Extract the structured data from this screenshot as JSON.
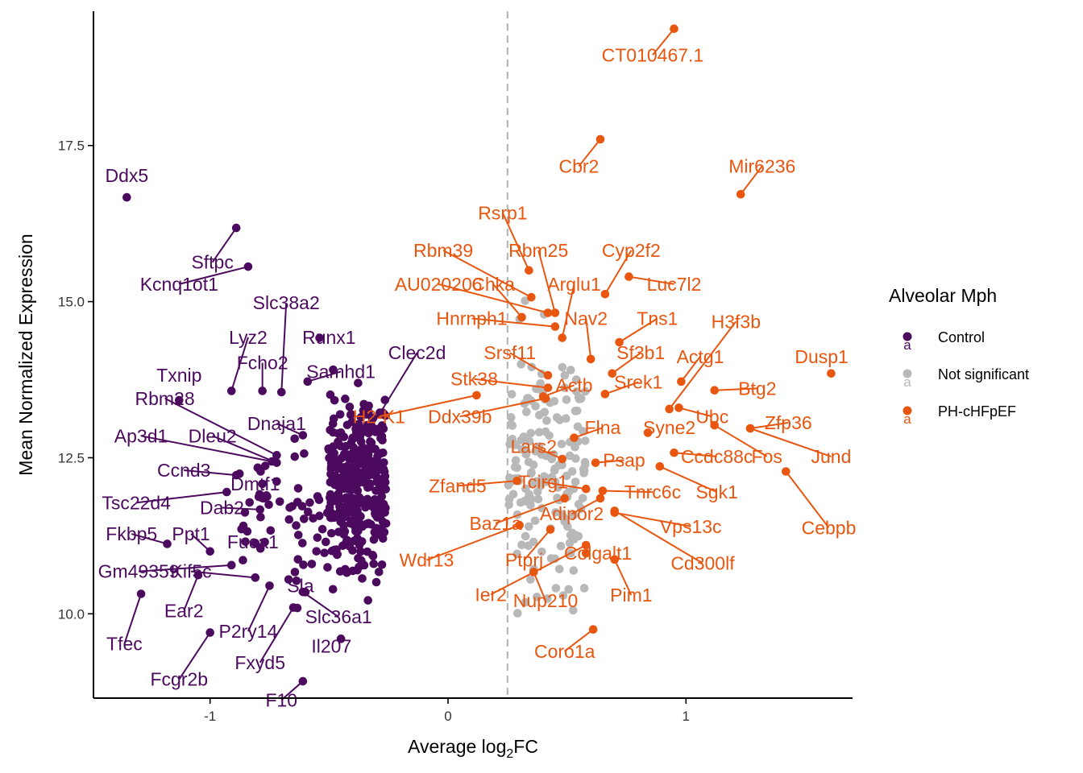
{
  "chart_data": {
    "type": "scatter",
    "title": "",
    "xlabel_main": "Average log",
    "xlabel_sub": "2",
    "xlabel_tail": "FC",
    "ylabel": "Mean Normalized Expression",
    "xlim": [
      -1.49,
      1.7
    ],
    "ylim": [
      8.65,
      19.65
    ],
    "x_ticks": [
      -1,
      0,
      1
    ],
    "x_tick_labels": [
      "-1",
      "0",
      "1"
    ],
    "y_ticks": [
      10.0,
      12.5,
      15.0,
      17.5
    ],
    "y_tick_labels": [
      "10.0",
      "12.5",
      "15.0",
      "17.5"
    ],
    "threshold_x": 0.25,
    "grid": false,
    "legend": {
      "title": "Alveolar Mph",
      "position": "right",
      "entries": [
        {
          "label": "Control",
          "color": "#4b0a5e"
        },
        {
          "label": "Not significant",
          "color": "#b8b8b8"
        },
        {
          "label": "PH-cHFpEF",
          "color": "#e8560f"
        }
      ]
    },
    "colors": {
      "Control": "#4b0a5e",
      "Not significant": "#b8b8b8",
      "PH-cHFpEF": "#e8560f"
    },
    "labeled_points": [
      {
        "group": "Control",
        "gene": "Ddx5",
        "x": -1.35,
        "y": 16.67,
        "lx": -1.35,
        "ly": 17.02
      },
      {
        "group": "Control",
        "gene": "Sftpc",
        "x": -0.89,
        "y": 16.18,
        "lx": -0.99,
        "ly": 15.63
      },
      {
        "group": "Control",
        "gene": "Kcnq1ot1",
        "x": -0.84,
        "y": 15.56,
        "lx": -1.13,
        "ly": 15.28
      },
      {
        "group": "Control",
        "gene": "Slc38a2",
        "x": -0.7,
        "y": 13.55,
        "lx": -0.68,
        "ly": 14.98
      },
      {
        "group": "Control",
        "gene": "Lyz2",
        "x": -0.91,
        "y": 13.57,
        "lx": -0.84,
        "ly": 14.43
      },
      {
        "group": "Control",
        "gene": "Runx1",
        "x": -0.54,
        "y": 14.42,
        "lx": -0.5,
        "ly": 14.43
      },
      {
        "group": "Control",
        "gene": "Fcho2",
        "x": -0.78,
        "y": 13.57,
        "lx": -0.78,
        "ly": 14.02
      },
      {
        "group": "Control",
        "gene": "Samhd1",
        "x": -0.59,
        "y": 13.72,
        "lx": -0.45,
        "ly": 13.88
      },
      {
        "group": "Control",
        "gene": "Clec2d",
        "x": -0.32,
        "y": 13.0,
        "lx": -0.13,
        "ly": 14.18
      },
      {
        "group": "Control",
        "gene": "Txnip",
        "x": -1.13,
        "y": 13.42,
        "lx": -1.13,
        "ly": 13.82
      },
      {
        "group": "Control",
        "gene": "Rbm28",
        "x": -0.72,
        "y": 12.54,
        "lx": -1.19,
        "ly": 13.45
      },
      {
        "group": "Control",
        "gene": "Dnaja1",
        "x": -0.61,
        "y": 12.86,
        "lx": -0.72,
        "ly": 13.05
      },
      {
        "group": "Control",
        "gene": "Ap3d1",
        "x": -0.74,
        "y": 12.44,
        "lx": -1.29,
        "ly": 12.85
      },
      {
        "group": "Control",
        "gene": "Dleu2",
        "x": -0.72,
        "y": 12.42,
        "lx": -0.99,
        "ly": 12.85
      },
      {
        "group": "Control",
        "gene": "Ccnd3",
        "x": -0.89,
        "y": 12.22,
        "lx": -1.11,
        "ly": 12.3
      },
      {
        "group": "Control",
        "gene": "Dmtf1",
        "x": -0.72,
        "y": 12.12,
        "lx": -0.81,
        "ly": 12.08
      },
      {
        "group": "Control",
        "gene": "Tsc22d4",
        "x": -0.93,
        "y": 11.95,
        "lx": -1.31,
        "ly": 11.78
      },
      {
        "group": "Control",
        "gene": "Dab2",
        "x": -0.79,
        "y": 11.67,
        "lx": -0.95,
        "ly": 11.7
      },
      {
        "group": "Control",
        "gene": "Fkbp5",
        "x": -1.18,
        "y": 11.12,
        "lx": -1.33,
        "ly": 11.28
      },
      {
        "group": "Control",
        "gene": "Ppt1",
        "x": -1.0,
        "y": 11.0,
        "lx": -1.08,
        "ly": 11.28
      },
      {
        "group": "Control",
        "gene": "Fuca1",
        "x": -0.77,
        "y": 11.15,
        "lx": -0.82,
        "ly": 11.15
      },
      {
        "group": "Control",
        "gene": "Gm49359",
        "x": -0.91,
        "y": 10.78,
        "lx": -1.3,
        "ly": 10.68
      },
      {
        "group": "Control",
        "gene": "Ear2",
        "x": -1.05,
        "y": 10.62,
        "lx": -1.11,
        "ly": 10.05
      },
      {
        "group": "Control",
        "gene": "Tfec",
        "x": -1.29,
        "y": 10.32,
        "lx": -1.36,
        "ly": 9.52
      },
      {
        "group": "Control",
        "gene": "Fcgr2b",
        "x": -1.0,
        "y": 9.7,
        "lx": -1.13,
        "ly": 8.95
      },
      {
        "group": "Control",
        "gene": "Kif5c",
        "x": -0.81,
        "y": 10.58,
        "lx": -1.08,
        "ly": 10.68
      },
      {
        "group": "Control",
        "gene": "P2ry14",
        "x": -0.75,
        "y": 10.45,
        "lx": -0.84,
        "ly": 9.72
      },
      {
        "group": "Control",
        "gene": "Fxyd5",
        "x": -0.65,
        "y": 10.1,
        "lx": -0.79,
        "ly": 9.22
      },
      {
        "group": "Control",
        "gene": "F10",
        "x": -0.61,
        "y": 8.92,
        "lx": -0.7,
        "ly": 8.62
      },
      {
        "group": "Control",
        "gene": "Sla",
        "x": -0.67,
        "y": 10.55,
        "lx": -0.62,
        "ly": 10.45
      },
      {
        "group": "Control",
        "gene": "Slc36a1",
        "x": -0.61,
        "y": 10.35,
        "lx": -0.46,
        "ly": 9.95
      },
      {
        "group": "Control",
        "gene": "Il207",
        "x": -0.45,
        "y": 9.6,
        "lx": -0.49,
        "ly": 9.48
      },
      {
        "group": "PH-cHFpEF",
        "gene": "CT010467.1",
        "x": 0.95,
        "y": 19.37,
        "lx": 0.86,
        "ly": 18.95
      },
      {
        "group": "PH-cHFpEF",
        "gene": "Cbr2",
        "x": 0.64,
        "y": 17.6,
        "lx": 0.55,
        "ly": 17.17
      },
      {
        "group": "PH-cHFpEF",
        "gene": "Mir6236",
        "x": 1.23,
        "y": 16.72,
        "lx": 1.32,
        "ly": 17.17
      },
      {
        "group": "PH-cHFpEF",
        "gene": "Rsrp1",
        "x": 0.34,
        "y": 15.5,
        "lx": 0.23,
        "ly": 16.42
      },
      {
        "group": "PH-cHFpEF",
        "gene": "Rbm39",
        "x": 0.35,
        "y": 15.07,
        "lx": -0.02,
        "ly": 15.82
      },
      {
        "group": "PH-cHFpEF",
        "gene": "Rbm25",
        "x": 0.45,
        "y": 14.82,
        "lx": 0.38,
        "ly": 15.82
      },
      {
        "group": "PH-cHFpEF",
        "gene": "Cyp2f2",
        "x": 0.66,
        "y": 15.12,
        "lx": 0.77,
        "ly": 15.82
      },
      {
        "group": "PH-cHFpEF",
        "gene": "AU020206",
        "x": 0.42,
        "y": 14.82,
        "lx": -0.04,
        "ly": 15.28
      },
      {
        "group": "PH-cHFpEF",
        "gene": "Chka",
        "x": 0.31,
        "y": 14.75,
        "lx": 0.19,
        "ly": 15.28
      },
      {
        "group": "PH-cHFpEF",
        "gene": "Arglu1",
        "x": 0.48,
        "y": 14.42,
        "lx": 0.53,
        "ly": 15.28
      },
      {
        "group": "PH-cHFpEF",
        "gene": "Luc7l2",
        "x": 0.76,
        "y": 15.4,
        "lx": 0.95,
        "ly": 15.28
      },
      {
        "group": "PH-cHFpEF",
        "gene": "Hnrnph1",
        "x": 0.45,
        "y": 14.6,
        "lx": 0.1,
        "ly": 14.73
      },
      {
        "group": "PH-cHFpEF",
        "gene": "Nav2",
        "x": 0.6,
        "y": 14.08,
        "lx": 0.58,
        "ly": 14.73
      },
      {
        "group": "PH-cHFpEF",
        "gene": "Tns1",
        "x": 0.72,
        "y": 14.35,
        "lx": 0.88,
        "ly": 14.73
      },
      {
        "group": "PH-cHFpEF",
        "gene": "H3f3b",
        "x": 0.93,
        "y": 13.28,
        "lx": 1.21,
        "ly": 14.68
      },
      {
        "group": "PH-cHFpEF",
        "gene": "Srsf11",
        "x": 0.42,
        "y": 13.82,
        "lx": 0.26,
        "ly": 14.18
      },
      {
        "group": "PH-cHFpEF",
        "gene": "Sf3b1",
        "x": 0.69,
        "y": 13.85,
        "lx": 0.81,
        "ly": 14.18
      },
      {
        "group": "PH-cHFpEF",
        "gene": "Actg1",
        "x": 0.98,
        "y": 13.72,
        "lx": 1.06,
        "ly": 14.12
      },
      {
        "group": "PH-cHFpEF",
        "gene": "Dusp1",
        "x": 1.61,
        "y": 13.85,
        "lx": 1.57,
        "ly": 14.12
      },
      {
        "group": "PH-cHFpEF",
        "gene": "Stk38",
        "x": 0.42,
        "y": 13.62,
        "lx": 0.11,
        "ly": 13.76
      },
      {
        "group": "PH-cHFpEF",
        "gene": "Actb",
        "x": 0.4,
        "y": 13.48,
        "lx": 0.53,
        "ly": 13.66
      },
      {
        "group": "PH-cHFpEF",
        "gene": "Srek1",
        "x": 0.66,
        "y": 13.52,
        "lx": 0.8,
        "ly": 13.71
      },
      {
        "group": "PH-cHFpEF",
        "gene": "Btg2",
        "x": 1.12,
        "y": 13.58,
        "lx": 1.3,
        "ly": 13.61
      },
      {
        "group": "PH-cHFpEF",
        "gene": "H2-K1",
        "x": 0.12,
        "y": 13.5,
        "lx": -0.29,
        "ly": 13.16
      },
      {
        "group": "PH-cHFpEF",
        "gene": "Ddx39b",
        "x": 0.41,
        "y": 13.45,
        "lx": 0.05,
        "ly": 13.16
      },
      {
        "group": "PH-cHFpEF",
        "gene": "Ubc",
        "x": 0.97,
        "y": 13.3,
        "lx": 1.11,
        "ly": 13.16
      },
      {
        "group": "PH-cHFpEF",
        "gene": "Zfp36",
        "x": 1.27,
        "y": 12.97,
        "lx": 1.43,
        "ly": 13.06
      },
      {
        "group": "PH-cHFpEF",
        "gene": "Flna",
        "x": 0.53,
        "y": 12.82,
        "lx": 0.65,
        "ly": 12.98
      },
      {
        "group": "PH-cHFpEF",
        "gene": "Syne2",
        "x": 0.84,
        "y": 12.9,
        "lx": 0.93,
        "ly": 12.98
      },
      {
        "group": "PH-cHFpEF",
        "gene": "Lars2",
        "x": 0.48,
        "y": 12.48,
        "lx": 0.36,
        "ly": 12.68
      },
      {
        "group": "PH-cHFpEF",
        "gene": "Ccdc88c",
        "x": 0.95,
        "y": 12.58,
        "lx": 1.13,
        "ly": 12.52
      },
      {
        "group": "PH-cHFpEF",
        "gene": "Fos",
        "x": 1.12,
        "y": 13.02,
        "lx": 1.34,
        "ly": 12.52
      },
      {
        "group": "PH-cHFpEF",
        "gene": "Jund",
        "x": 1.27,
        "y": 12.97,
        "lx": 1.61,
        "ly": 12.52
      },
      {
        "group": "PH-cHFpEF",
        "gene": "Psap",
        "x": 0.62,
        "y": 12.42,
        "lx": 0.74,
        "ly": 12.46
      },
      {
        "group": "PH-cHFpEF",
        "gene": "Zfand5",
        "x": 0.29,
        "y": 12.13,
        "lx": 0.04,
        "ly": 12.05
      },
      {
        "group": "PH-cHFpEF",
        "gene": "Tcirg1",
        "x": 0.58,
        "y": 12.0,
        "lx": 0.4,
        "ly": 12.11
      },
      {
        "group": "PH-cHFpEF",
        "gene": "Sgk1",
        "x": 0.89,
        "y": 12.36,
        "lx": 1.13,
        "ly": 11.95
      },
      {
        "group": "PH-cHFpEF",
        "gene": "Tnrc6c",
        "x": 0.65,
        "y": 11.97,
        "lx": 0.86,
        "ly": 11.95
      },
      {
        "group": "PH-cHFpEF",
        "gene": "Cebpb",
        "x": 1.42,
        "y": 12.28,
        "lx": 1.6,
        "ly": 11.38
      },
      {
        "group": "PH-cHFpEF",
        "gene": "Baz1a",
        "x": 0.49,
        "y": 11.85,
        "lx": 0.2,
        "ly": 11.45
      },
      {
        "group": "PH-cHFpEF",
        "gene": "Adipor2",
        "x": 0.64,
        "y": 11.85,
        "lx": 0.52,
        "ly": 11.6
      },
      {
        "group": "PH-cHFpEF",
        "gene": "Vps13c",
        "x": 0.7,
        "y": 11.62,
        "lx": 1.02,
        "ly": 11.4
      },
      {
        "group": "PH-cHFpEF",
        "gene": "Wdr13",
        "x": 0.3,
        "y": 11.42,
        "lx": -0.09,
        "ly": 10.86
      },
      {
        "group": "PH-cHFpEF",
        "gene": "Ptprj",
        "x": 0.43,
        "y": 11.35,
        "lx": 0.32,
        "ly": 10.86
      },
      {
        "group": "PH-cHFpEF",
        "gene": "Colgalt1",
        "x": 0.58,
        "y": 10.97,
        "lx": 0.63,
        "ly": 10.97
      },
      {
        "group": "PH-cHFpEF",
        "gene": "Cd300lf",
        "x": 0.7,
        "y": 11.65,
        "lx": 1.07,
        "ly": 10.81
      },
      {
        "group": "PH-cHFpEF",
        "gene": "Ier2",
        "x": 0.58,
        "y": 11.1,
        "lx": 0.18,
        "ly": 10.31
      },
      {
        "group": "PH-cHFpEF",
        "gene": "Nup210",
        "x": 0.36,
        "y": 10.67,
        "lx": 0.41,
        "ly": 10.21
      },
      {
        "group": "PH-cHFpEF",
        "gene": "Pim1",
        "x": 0.7,
        "y": 10.87,
        "lx": 0.77,
        "ly": 10.3
      },
      {
        "group": "PH-cHFpEF",
        "gene": "Coro1a",
        "x": 0.61,
        "y": 9.75,
        "lx": 0.49,
        "ly": 9.4
      }
    ],
    "point_clusters": [
      {
        "group": "Control",
        "count": 310,
        "x_range": [
          -0.5,
          -0.26
        ],
        "y_range": [
          10.2,
          14.0
        ],
        "seed": 11
      },
      {
        "group": "Control",
        "count": 60,
        "x_range": [
          -0.66,
          -0.28
        ],
        "y_range": [
          9.4,
          13.8
        ],
        "seed": 23
      },
      {
        "group": "Control",
        "count": 28,
        "x_range": [
          -0.88,
          -0.6
        ],
        "y_range": [
          10.5,
          12.8
        ],
        "seed": 37
      },
      {
        "group": "Not significant",
        "count": 170,
        "x_range": [
          0.25,
          0.58
        ],
        "y_range": [
          9.3,
          15.3
        ],
        "seed": 41
      }
    ]
  }
}
